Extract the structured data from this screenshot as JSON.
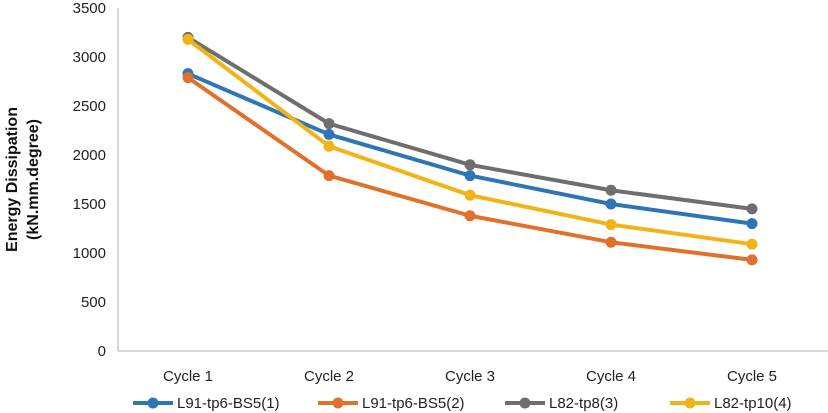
{
  "chart_data": {
    "type": "line",
    "title": "",
    "xlabel": "",
    "ylabel_lines": [
      "Energy Dissipation",
      "(kN.mm.degree)"
    ],
    "categories": [
      "Cycle 1",
      "Cycle 2",
      "Cycle 3",
      "Cycle 4",
      "Cycle 5"
    ],
    "ylim": [
      0,
      3500
    ],
    "yticks": [
      0,
      500,
      1000,
      1500,
      2000,
      2500,
      3000,
      3500
    ],
    "grid": false,
    "legend_position": "bottom",
    "series": [
      {
        "name": "L91-tp6-BS5(1)",
        "color": "#2E75B6",
        "values": [
          2830,
          2210,
          1790,
          1500,
          1300
        ]
      },
      {
        "name": "L91-tp6-BS5(2)",
        "color": "#E0702A",
        "values": [
          2790,
          1790,
          1380,
          1110,
          930
        ]
      },
      {
        "name": "L82-tp8(3)",
        "color": "#6E6E6E",
        "values": [
          3200,
          2320,
          1900,
          1640,
          1450
        ]
      },
      {
        "name": "L82-tp10(4)",
        "color": "#F2B316",
        "values": [
          3180,
          2090,
          1590,
          1290,
          1090
        ]
      }
    ]
  }
}
